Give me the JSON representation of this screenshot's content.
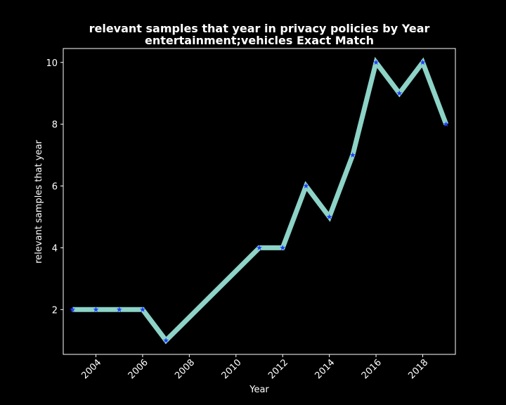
{
  "chart_data": {
    "type": "line",
    "title": "relevant samples that year in privacy policies by Year",
    "subtitle": "entertainment;vehicles Exact Match",
    "xlabel": "Year",
    "ylabel": "relevant samples that year",
    "xlim": [
      2002.6,
      2019.4
    ],
    "ylim": [
      0.55,
      10.45
    ],
    "x_ticks": [
      2004,
      2006,
      2008,
      2010,
      2012,
      2014,
      2016,
      2018
    ],
    "y_ticks": [
      2,
      4,
      6,
      8,
      10
    ],
    "grid": false,
    "legend": "none",
    "line_color": "#8dd3c7",
    "marker_color": "#1f3cff",
    "background": "#000000",
    "foreground": "#ffffff",
    "series": [
      {
        "x": [
          2003,
          2004,
          2005,
          2006,
          2007,
          2011,
          2012,
          2013,
          2014,
          2015,
          2016,
          2017,
          2018,
          2019
        ],
        "y": [
          2,
          2,
          2,
          2,
          1,
          4,
          4,
          6,
          5,
          7,
          10,
          9,
          10,
          8
        ]
      }
    ]
  }
}
